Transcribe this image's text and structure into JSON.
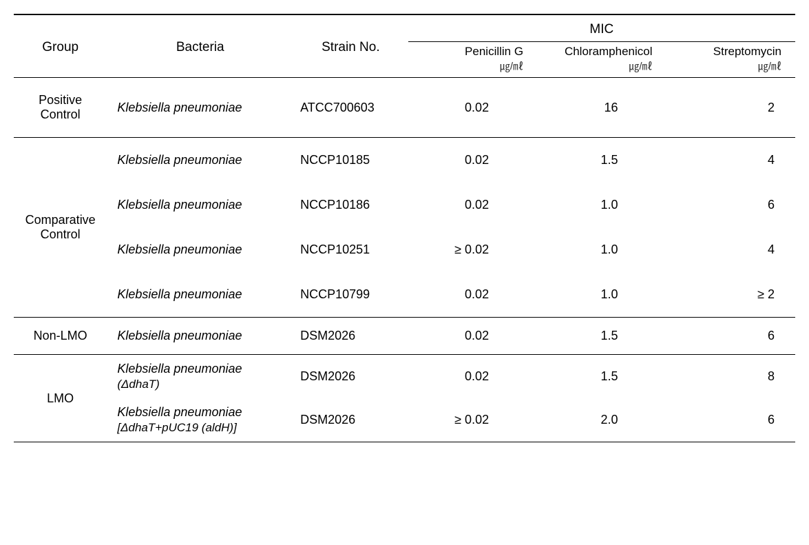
{
  "headers": {
    "group": "Group",
    "bacteria": "Bacteria",
    "strain": "Strain No.",
    "mic": "MIC",
    "cols": [
      {
        "name": "Penicillin G",
        "unit": "㎍/㎖"
      },
      {
        "name": "Chloramphenicol",
        "unit": "㎍/㎖"
      },
      {
        "name": "Streptomycin",
        "unit": "㎍/㎖"
      }
    ]
  },
  "groups": [
    {
      "name": "Positive\nControl",
      "rows": [
        {
          "bacteria": "Klebsiella pneumoniae",
          "sub": "",
          "strain": "ATCC700603",
          "v1": "0.02",
          "v2": "16",
          "v3": "2"
        }
      ]
    },
    {
      "name": "Comparative\nControl",
      "rows": [
        {
          "bacteria": "Klebsiella pneumoniae",
          "sub": "",
          "strain": "NCCP10185",
          "v1": "0.02",
          "v2": "1.5",
          "v3": "4"
        },
        {
          "bacteria": "Klebsiella pneumoniae",
          "sub": "",
          "strain": "NCCP10186",
          "v1": "0.02",
          "v2": "1.0",
          "v3": "6"
        },
        {
          "bacteria": "Klebsiella pneumoniae",
          "sub": "",
          "strain": "NCCP10251",
          "v1": "≥ 0.02",
          "v2": "1.0",
          "v3": "4"
        },
        {
          "bacteria": "Klebsiella pneumoniae",
          "sub": "",
          "strain": "NCCP10799",
          "v1": "0.02",
          "v2": "1.0",
          "v3": "≥ 2"
        }
      ]
    },
    {
      "name": "Non-LMO",
      "rows": [
        {
          "bacteria": "Klebsiella pneumoniae",
          "sub": "",
          "strain": "DSM2026",
          "v1": "0.02",
          "v2": "1.5",
          "v3": "6"
        }
      ]
    },
    {
      "name": "LMO",
      "rows": [
        {
          "bacteria": "Klebsiella pneumoniae",
          "sub": "(ΔdhaT)",
          "strain": "DSM2026",
          "v1": "0.02",
          "v2": "1.5",
          "v3": "8"
        },
        {
          "bacteria": "Klebsiella pneumoniae",
          "sub": "[ΔdhaT+pUC19 (aldH)]",
          "strain": "DSM2026",
          "v1": "≥ 0.02",
          "v2": "2.0",
          "v3": "6"
        }
      ]
    }
  ],
  "styling": {
    "background_color": "#ffffff",
    "text_color": "#000000",
    "border_color": "#000000",
    "font_family": "Arial, Helvetica, sans-serif",
    "base_fontsize": 18,
    "header_fontsize": 19,
    "subheader_fontsize": 17,
    "unit_fontsize": 15,
    "top_border_width": 2,
    "inner_border_width": 1,
    "col_widths": {
      "group": 130,
      "bacteria": 260,
      "strain": 160,
      "val": 180
    }
  }
}
